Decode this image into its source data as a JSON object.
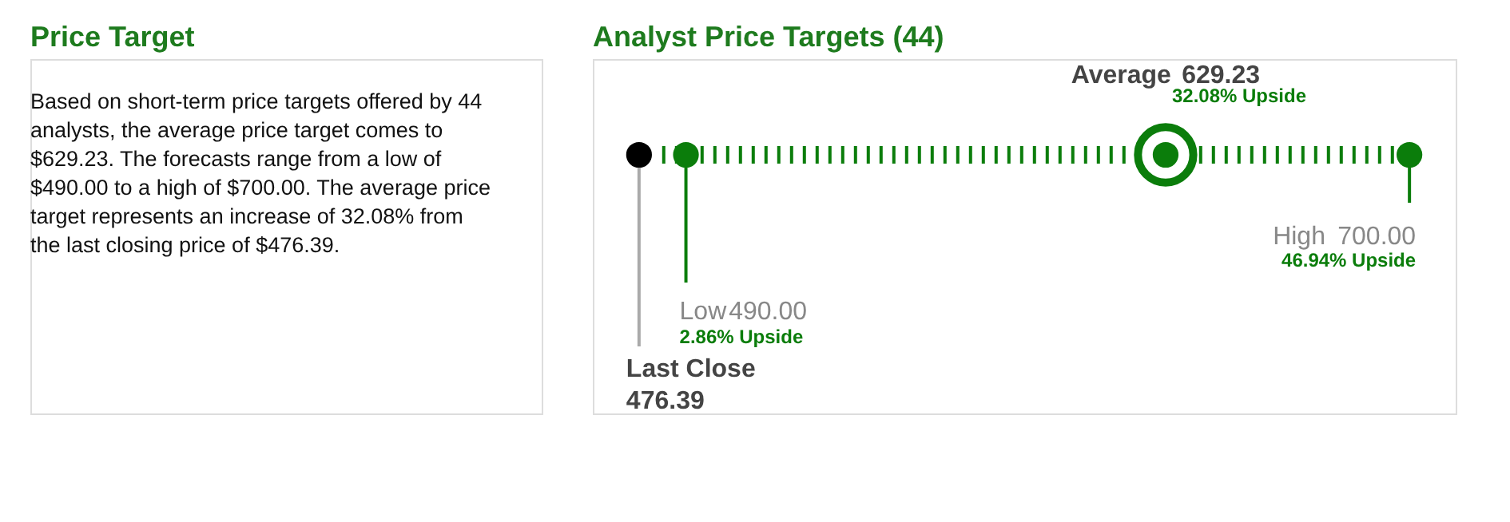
{
  "chart_data": [
    {
      "type": "other",
      "title": "Price Target",
      "annotations": [
        "Based on short-term price targets offered by 44 analysts, the average price target comes to $629.23. The forecasts range from a low of $490.00 to a high of $700.00. The average price target represents an increase of 32.08% from the last closing price of $476.39."
      ]
    },
    {
      "type": "other",
      "title": "Analyst Price Targets (44)",
      "categories": [
        "Last Close",
        "Low",
        "Average",
        "High"
      ],
      "values": [
        476.39,
        490.0,
        629.23,
        700.0
      ],
      "colors": [
        "#000000",
        "#0b7d0b",
        "#0b7d0b",
        "#0b7d0b"
      ],
      "value_labels": [
        "476.39",
        "490.00",
        "629.23",
        "700.00"
      ],
      "annotations": [
        null,
        "2.86% Upside",
        "32.08% Upside",
        "46.94% Upside"
      ]
    }
  ]
}
